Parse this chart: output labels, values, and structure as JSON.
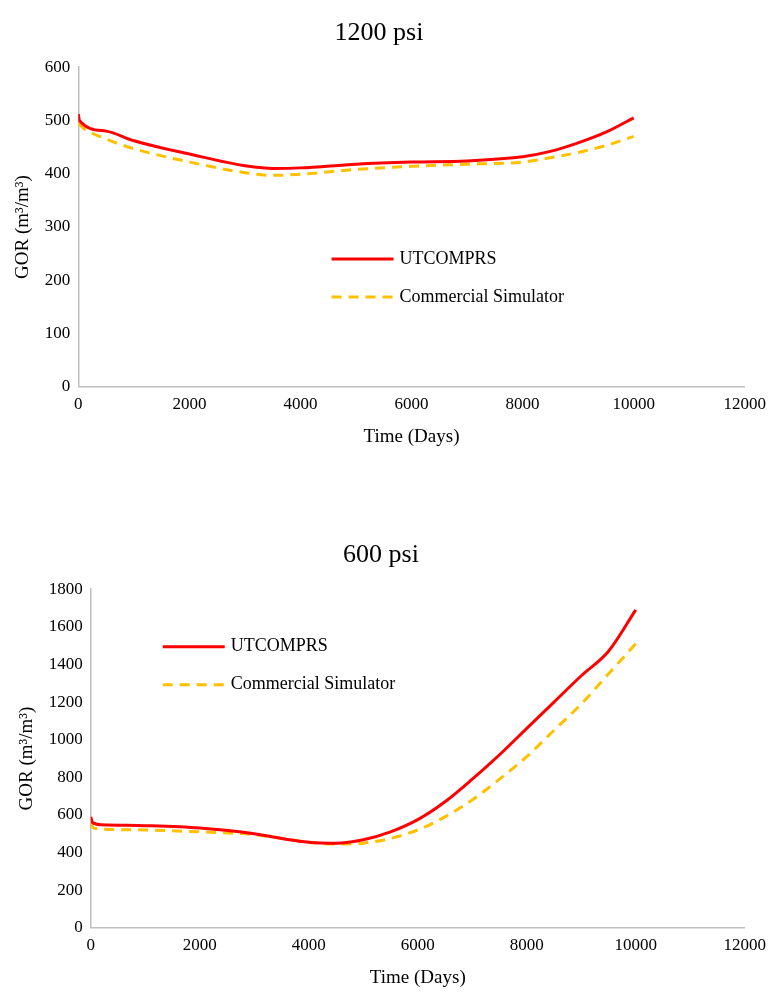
{
  "chart_data": [
    {
      "type": "line",
      "title": "1200 psi",
      "xlabel": "Time (Days)",
      "ylabel": "GOR (m³/m³)",
      "xlim": [
        0,
        12000
      ],
      "xticks": [
        0,
        2000,
        4000,
        6000,
        8000,
        10000,
        12000
      ],
      "ylim": [
        0,
        600
      ],
      "yticks": [
        0,
        100,
        200,
        300,
        400,
        500,
        600
      ],
      "grid": false,
      "legend": "center",
      "marker": "none",
      "series": [
        {
          "name": "UTCOMPRS",
          "color": "#ff0000",
          "line_style": "solid",
          "x": [
            0,
            20,
            500,
            1000,
            2000,
            3000,
            3500,
            4000,
            5000,
            6000,
            7000,
            8000,
            8500,
            9000,
            9500,
            10000
          ],
          "values": [
            512,
            500,
            480,
            462,
            437,
            415,
            410,
            411,
            418,
            422,
            424,
            432,
            442,
            458,
            478,
            505
          ]
        },
        {
          "name": "Commercial Simulator",
          "color": "#ffc000",
          "line_style": "dashed",
          "x": [
            0,
            100,
            500,
            1000,
            2000,
            3000,
            3500,
            4000,
            5000,
            6000,
            7000,
            8000,
            8500,
            9000,
            9500,
            10000
          ],
          "values": [
            495,
            485,
            465,
            447,
            422,
            402,
            397,
            399,
            408,
            414,
            418,
            422,
            430,
            440,
            453,
            470
          ]
        }
      ]
    },
    {
      "type": "line",
      "title": "600 psi",
      "xlabel": "Time (Days)",
      "ylabel": "GOR (m³/m³)",
      "xlim": [
        0,
        12000
      ],
      "xticks": [
        0,
        2000,
        4000,
        6000,
        8000,
        10000,
        12000
      ],
      "ylim": [
        0,
        1800
      ],
      "yticks": [
        0,
        200,
        400,
        600,
        800,
        1000,
        1200,
        1400,
        1600,
        1800
      ],
      "grid": false,
      "legend": "top left",
      "marker": "none",
      "series": [
        {
          "name": "UTCOMPRS",
          "color": "#ff0000",
          "line_style": "solid",
          "x": [
            0,
            30,
            200,
            1000,
            2000,
            3000,
            3500,
            4000,
            4500,
            5000,
            5500,
            6000,
            6500,
            7000,
            7500,
            8000,
            8500,
            9000,
            9500,
            10000
          ],
          "values": [
            590,
            560,
            548,
            543,
            530,
            500,
            475,
            455,
            450,
            468,
            510,
            575,
            670,
            790,
            920,
            1060,
            1200,
            1340,
            1470,
            1690
          ]
        },
        {
          "name": "Commercial Simulator",
          "color": "#ffc000",
          "line_style": "dashed",
          "x": [
            0,
            50,
            500,
            1000,
            2000,
            3000,
            4000,
            4500,
            5000,
            5500,
            6000,
            6500,
            7000,
            7500,
            8000,
            8500,
            9000,
            9500,
            10000
          ],
          "values": [
            560,
            530,
            522,
            520,
            510,
            495,
            455,
            445,
            450,
            475,
            520,
            590,
            680,
            790,
            910,
            1050,
            1190,
            1350,
            1510
          ]
        }
      ]
    }
  ]
}
